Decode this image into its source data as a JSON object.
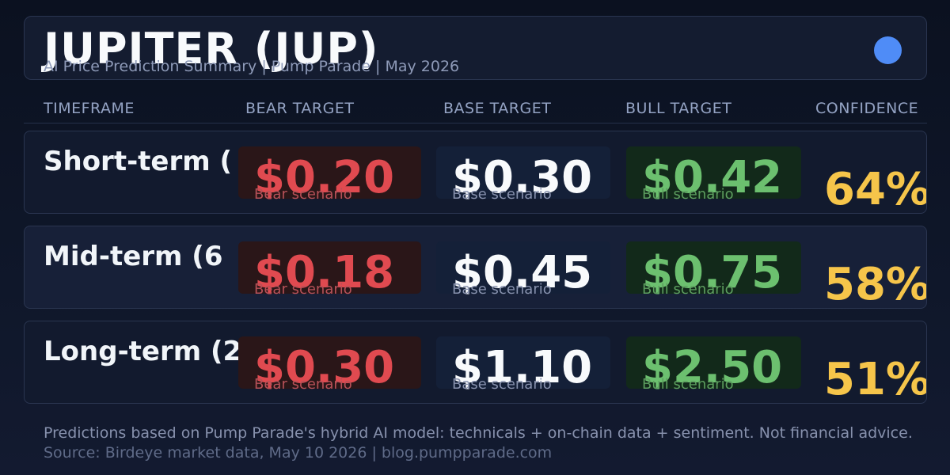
{
  "header": {
    "title": "JUPITER (JUP)",
    "subtitle": "AI Price Prediction Summary  |  Pump Parade  |  May 2026",
    "accent_dot_color": "#4f8cf7"
  },
  "columns": {
    "timeframe": "TIMEFRAME",
    "bear": "BEAR TARGET",
    "base": "BASE TARGET",
    "bull": "BULL TARGET",
    "confidence": "CONFIDENCE"
  },
  "rows": [
    {
      "timeframe": "Short-term (",
      "bear_price": "$0.20",
      "bear_label": "Bear scenario",
      "base_price": "$0.30",
      "base_label": "Base scenario",
      "bull_price": "$0.42",
      "bull_label": "Bull scenario",
      "confidence": "64%"
    },
    {
      "timeframe": "Mid-term (6",
      "bear_price": "$0.18",
      "bear_label": "Bear scenario",
      "base_price": "$0.45",
      "base_label": "Base scenario",
      "bull_price": "$0.75",
      "bull_label": "Bull scenario",
      "confidence": "58%"
    },
    {
      "timeframe": "Long-term (2",
      "bear_price": "$0.30",
      "bear_label": "Bear scenario",
      "base_price": "$1.10",
      "base_label": "Base scenario",
      "bull_price": "$2.50",
      "bull_label": "Bull scenario",
      "confidence": "51%"
    }
  ],
  "footer": {
    "disclaimer": "Predictions based on Pump Parade's hybrid AI model: technicals + on-chain data + sentiment. Not financial advice.",
    "source": "Source: Birdeye market data, May 10 2026  |  blog.pumpparade.com"
  },
  "colors": {
    "bear": "#e04a50",
    "base": "#f8fafc",
    "bull": "#6cc06f",
    "confidence": "#f6c54a"
  }
}
